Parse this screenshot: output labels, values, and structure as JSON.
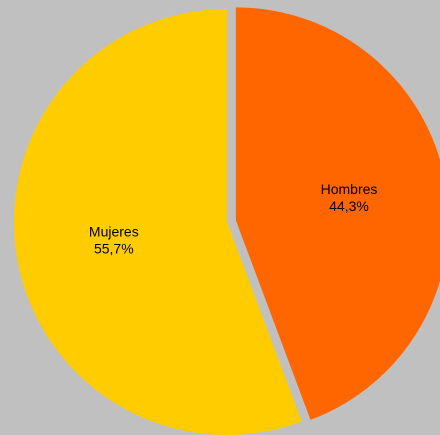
{
  "colors": {
    "background": "#c0c0c0",
    "mujeres": "#ffcc00",
    "hombres": "#ff6600"
  },
  "chart_data": {
    "type": "pie",
    "title": "",
    "slices": [
      {
        "name": "Hombres",
        "value": 44.3,
        "label": "Hombres",
        "value_label": "44,3%",
        "color": "#ff6600",
        "exploded": true
      },
      {
        "name": "Mujeres",
        "value": 55.7,
        "label": "Mujeres",
        "value_label": "55,7%",
        "color": "#ffcc00",
        "exploded": false
      }
    ],
    "start": "top (12 o'clock), clockwise",
    "legend": "none"
  }
}
